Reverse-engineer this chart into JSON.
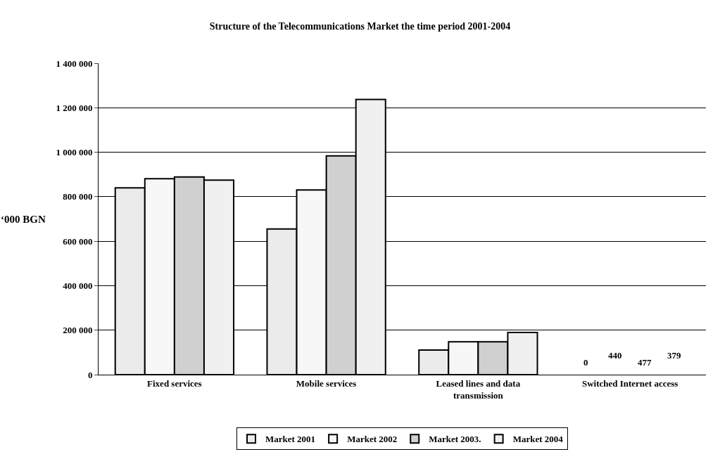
{
  "chart_data": {
    "type": "bar",
    "title": "Structure of the Telecommunications Market the time period 2001-2004",
    "ylabel": "‘000 BGN",
    "categories": [
      "Fixed services",
      "Mobile services",
      "Leased lines and data\ntransmission",
      "Switched Internet access"
    ],
    "series": [
      {
        "name": "Market 2001",
        "color": "#ebebeb",
        "values": [
          840000,
          655000,
          111000,
          null
        ]
      },
      {
        "name": "Market 2002",
        "color": "#f7f7f7",
        "values": [
          881000,
          830000,
          148000,
          null
        ]
      },
      {
        "name": "Market 2003.",
        "color": "#d0d0d0",
        "values": [
          889000,
          984000,
          148000,
          null
        ]
      },
      {
        "name": "Market 2004",
        "color": "#f0f0f0",
        "values": [
          875000,
          1237000,
          190000,
          null
        ]
      }
    ],
    "annotations": [
      "0",
      "440",
      "477",
      "379"
    ],
    "ylim": [
      0,
      1400000
    ],
    "yticks": [
      {
        "value": 0,
        "label": "0"
      },
      {
        "value": 200000,
        "label": "200 000"
      },
      {
        "value": 400000,
        "label": "400 000"
      },
      {
        "value": 600000,
        "label": "600 000"
      },
      {
        "value": 800000,
        "label": "800 000"
      },
      {
        "value": 1000000,
        "label": "1 000 000"
      },
      {
        "value": 1200000,
        "label": "1 200 000"
      },
      {
        "value": 1400000,
        "label": "1 400 000"
      }
    ],
    "grid": "y",
    "legend": "bottom"
  }
}
